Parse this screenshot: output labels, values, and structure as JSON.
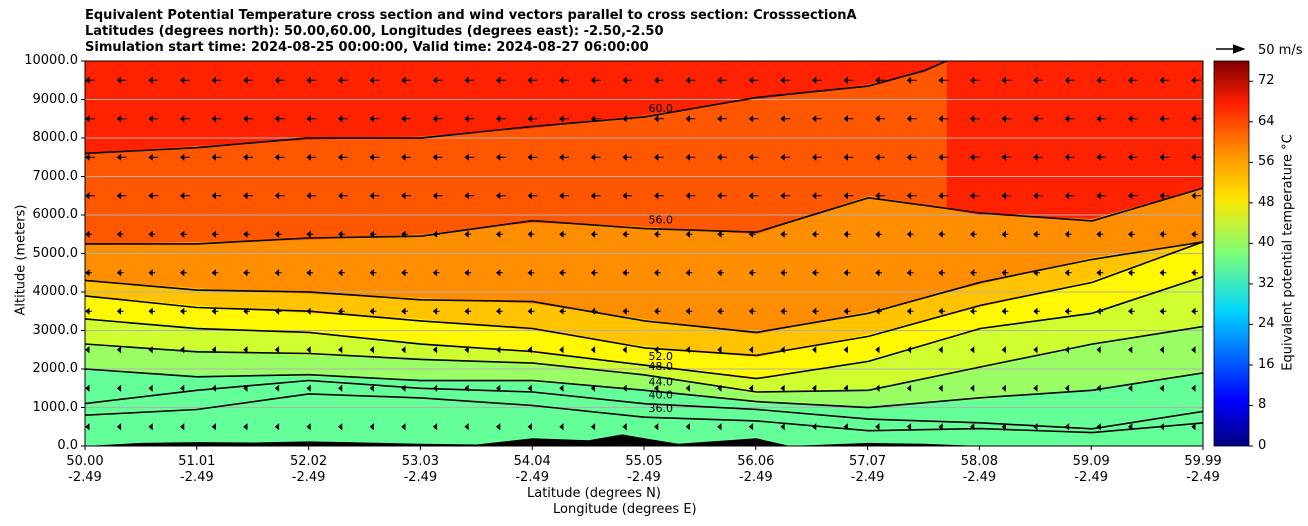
{
  "title": {
    "line1": "Equivalent Potential Temperature cross section and wind vectors parallel to cross section: CrosssectionA",
    "line2": "Latitudes (degrees north): 50.00,60.00, Longitudes (degrees east): -2.50,-2.50",
    "line3": "Simulation start time: 2024-08-25 00:00:00, Valid time: 2024-08-27 06:00:00"
  },
  "chart_data": {
    "type": "contour",
    "ylabel": "Altitude (meters)",
    "xlabel_lat": "Latitude (degrees N)",
    "xlabel_lon": "Longitude (degrees E)",
    "ylim": [
      0,
      10000
    ],
    "xlim": [
      50.0,
      59.99
    ],
    "y_ticks": [
      "0.0",
      "1000.0",
      "2000.0",
      "3000.0",
      "4000.0",
      "5000.0",
      "6000.0",
      "7000.0",
      "8000.0",
      "9000.0",
      "10000.0"
    ],
    "x_ticks": [
      {
        "lat": "50.00",
        "lon": "-2.49"
      },
      {
        "lat": "51.01",
        "lon": "-2.49"
      },
      {
        "lat": "52.02",
        "lon": "-2.49"
      },
      {
        "lat": "53.03",
        "lon": "-2.49"
      },
      {
        "lat": "54.04",
        "lon": "-2.49"
      },
      {
        "lat": "55.05",
        "lon": "-2.49"
      },
      {
        "lat": "56.06",
        "lon": "-2.49"
      },
      {
        "lat": "57.07",
        "lon": "-2.49"
      },
      {
        "lat": "58.08",
        "lon": "-2.49"
      },
      {
        "lat": "59.09",
        "lon": "-2.49"
      },
      {
        "lat": "59.99",
        "lon": "-2.49"
      }
    ],
    "colorbar": {
      "label": "Equivalent potential temperature °C",
      "range": [
        0,
        76
      ],
      "ticks": [
        "0",
        "8",
        "16",
        "24",
        "32",
        "40",
        "48",
        "56",
        "64",
        "72"
      ]
    },
    "quiver_key": "50 m/s",
    "contour_levels": [
      {
        "level": 36.0,
        "label": "36.0",
        "points": [
          [
            50.0,
            800
          ],
          [
            51.0,
            1000
          ],
          [
            52.0,
            1300
          ],
          [
            53.0,
            1300
          ],
          [
            54.0,
            1000
          ],
          [
            55.0,
            800
          ],
          [
            56.0,
            600
          ],
          [
            57.0,
            450
          ],
          [
            58.0,
            400
          ],
          [
            59.0,
            400
          ],
          [
            59.99,
            600
          ]
        ]
      },
      {
        "level": 40.0,
        "label": "40.0",
        "points": [
          [
            50.0,
            1100
          ],
          [
            51.0,
            1500
          ],
          [
            52.0,
            1650
          ],
          [
            53.0,
            1550
          ],
          [
            54.0,
            1350
          ],
          [
            55.0,
            1150
          ],
          [
            56.0,
            900
          ],
          [
            57.0,
            750
          ],
          [
            58.0,
            550
          ],
          [
            59.0,
            500
          ],
          [
            59.99,
            900
          ]
        ]
      },
      {
        "level": 44.0,
        "label": "44.0",
        "points": [
          [
            50.0,
            2000
          ],
          [
            51.0,
            1850
          ],
          [
            52.0,
            1800
          ],
          [
            53.0,
            1750
          ],
          [
            54.0,
            1650
          ],
          [
            55.0,
            1500
          ],
          [
            56.0,
            1100
          ],
          [
            57.0,
            1050
          ],
          [
            58.0,
            1200
          ],
          [
            59.0,
            1500
          ],
          [
            59.99,
            1900
          ]
        ]
      },
      {
        "level": 48.0,
        "label": "48.0",
        "points": [
          [
            50.0,
            2650
          ],
          [
            51.0,
            2500
          ],
          [
            52.0,
            2350
          ],
          [
            53.0,
            2300
          ],
          [
            54.0,
            2100
          ],
          [
            55.0,
            1900
          ],
          [
            56.0,
            1350
          ],
          [
            57.0,
            1500
          ],
          [
            58.0,
            2000
          ],
          [
            59.0,
            2700
          ],
          [
            59.99,
            3100
          ]
        ]
      },
      {
        "level": 52.0,
        "label": "52.0",
        "points": [
          [
            50.0,
            3300
          ],
          [
            51.0,
            3100
          ],
          [
            52.0,
            2900
          ],
          [
            53.0,
            2700
          ],
          [
            54.0,
            2400
          ],
          [
            55.0,
            2150
          ],
          [
            56.0,
            1700
          ],
          [
            57.0,
            2250
          ],
          [
            58.0,
            3000
          ],
          [
            59.0,
            3500
          ],
          [
            59.99,
            4400
          ]
        ]
      },
      {
        "level": 52.0,
        "label": "",
        "points": [
          [
            50.0,
            3900
          ],
          [
            51.0,
            3650
          ],
          [
            52.0,
            3450
          ],
          [
            53.0,
            3300
          ],
          [
            54.0,
            3000
          ],
          [
            55.0,
            2600
          ],
          [
            56.0,
            2300
          ],
          [
            57.0,
            2900
          ],
          [
            58.0,
            3600
          ],
          [
            59.0,
            4300
          ],
          [
            59.99,
            5300
          ]
        ]
      },
      {
        "level": 52.0,
        "label": "",
        "points": [
          [
            50.0,
            4300
          ],
          [
            51.0,
            4100
          ],
          [
            52.0,
            3950
          ],
          [
            53.0,
            3850
          ],
          [
            54.0,
            3700
          ],
          [
            55.0,
            3300
          ],
          [
            56.0,
            2900
          ],
          [
            57.0,
            3500
          ],
          [
            58.0,
            4200
          ],
          [
            59.0,
            4900
          ],
          [
            59.99,
            5300
          ]
        ]
      },
      {
        "level": 56.0,
        "label": "56.0",
        "points": [
          [
            50.0,
            5250
          ],
          [
            51.0,
            5300
          ],
          [
            52.0,
            5350
          ],
          [
            53.0,
            5500
          ],
          [
            54.0,
            5800
          ],
          [
            55.0,
            5700
          ],
          [
            56.0,
            5500
          ],
          [
            57.0,
            6500
          ],
          [
            58.0,
            6000
          ],
          [
            59.0,
            5900
          ],
          [
            59.99,
            6700
          ]
        ]
      },
      {
        "level": 60.0,
        "label": "60.0",
        "points": [
          [
            50.0,
            7600
          ],
          [
            51.0,
            7800
          ],
          [
            52.0,
            7950
          ],
          [
            53.0,
            8050
          ],
          [
            54.0,
            8250
          ],
          [
            55.0,
            8600
          ],
          [
            56.0,
            9000
          ],
          [
            57.0,
            9400
          ],
          [
            57.5,
            9700
          ],
          [
            57.7,
            10000
          ]
        ]
      }
    ],
    "colored_bands_degC": [
      64,
      60,
      56,
      52,
      48,
      44,
      40,
      36
    ]
  }
}
